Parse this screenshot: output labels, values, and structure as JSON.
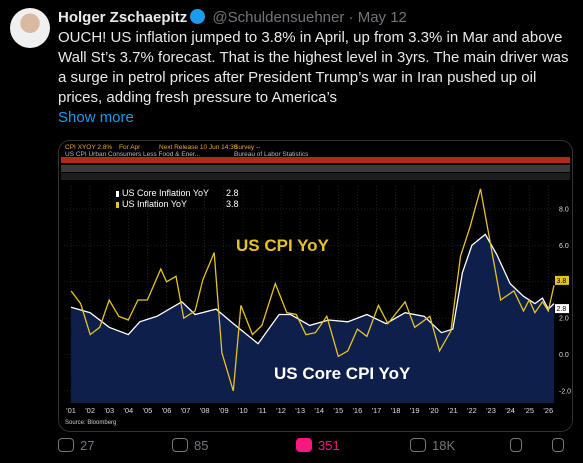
{
  "tweet": {
    "author": "Holger Zschaepitz",
    "handle": "@Schuldensuehner",
    "date": "May 12",
    "text": "OUCH! US inflation jumped to 3.8% in April, up from 3.3% in Mar and above Wall St’s 3.7% forecast. That is the highest level in 3yrs. The main driver was a surge in petrol prices after President Trump’s war in Iran pushed up oil prices, adding fresh pressure to America’s",
    "show_more": "Show more",
    "stats": {
      "replies": 27,
      "reposts": 85,
      "likes": 351,
      "views": "18K"
    }
  },
  "chart_data": {
    "type": "line",
    "header": [
      "CPI XYOY 2.8%",
      "For Apr",
      "Next Release 10 Jun 14:30",
      "Survey --",
      "US CPI Urban Consumers Less Food & Ener...",
      "Bureau of Labor Statistics"
    ],
    "annotations": [
      "US CPI YoY",
      "US Core CPI YoY"
    ],
    "source": "Source: Bloomberg",
    "xlim": [
      2000.63,
      2026.3
    ],
    "ylim": [
      -2.66,
      9.26
    ],
    "xticks": [
      {
        "value": 2001,
        "label": "'01"
      },
      {
        "value": 2002,
        "label": "'02"
      },
      {
        "value": 2003,
        "label": "'03"
      },
      {
        "value": 2004,
        "label": "'04"
      },
      {
        "value": 2005,
        "label": "'05"
      },
      {
        "value": 2006,
        "label": "'06"
      },
      {
        "value": 2007,
        "label": "'07"
      },
      {
        "value": 2008,
        "label": "'08"
      },
      {
        "value": 2009,
        "label": "'09"
      },
      {
        "value": 2010,
        "label": "'10"
      },
      {
        "value": 2011,
        "label": "'11"
      },
      {
        "value": 2012,
        "label": "'12"
      },
      {
        "value": 2013,
        "label": "'13"
      },
      {
        "value": 2014,
        "label": "'14"
      },
      {
        "value": 2015,
        "label": "'15"
      },
      {
        "value": 2016,
        "label": "'16"
      },
      {
        "value": 2017,
        "label": "'17"
      },
      {
        "value": 2018,
        "label": "'18"
      },
      {
        "value": 2019,
        "label": "'19"
      },
      {
        "value": 2020,
        "label": "'20"
      },
      {
        "value": 2021,
        "label": "'21"
      },
      {
        "value": 2022,
        "label": "'22"
      },
      {
        "value": 2023,
        "label": "'23"
      },
      {
        "value": 2024,
        "label": "'24"
      },
      {
        "value": 2025,
        "label": "'25"
      },
      {
        "value": 2026,
        "label": "'26"
      }
    ],
    "yticks": [
      {
        "value": -2,
        "label": "-2.0"
      },
      {
        "value": 0,
        "label": "0.0"
      },
      {
        "value": 2,
        "label": "2.0"
      },
      {
        "value": 4,
        "label": "4.0"
      },
      {
        "value": 6,
        "label": "6.0"
      },
      {
        "value": 8,
        "label": "8.0"
      }
    ],
    "series": [
      {
        "name": "US Core Inflation YoY",
        "latest": 2.8,
        "color": "#ffffff",
        "fill": "#0d1f4a",
        "x": [
          2001,
          2002,
          2003,
          2004,
          2004.6,
          2005.5,
          2006.8,
          2007.5,
          2008.6,
          2009.5,
          2010.8,
          2011.9,
          2012.5,
          2013.5,
          2014.5,
          2015.5,
          2016.5,
          2017.5,
          2018.5,
          2019.5,
          2020.4,
          2021.0,
          2021.5,
          2022.0,
          2022.7,
          2023.3,
          2024.0,
          2024.7,
          2025.3,
          2025.7,
          2026.0,
          2026.3
        ],
        "values": [
          2.6,
          2.3,
          1.5,
          1.1,
          1.8,
          2.1,
          2.9,
          2.2,
          2.5,
          1.7,
          0.6,
          2.2,
          2.2,
          1.6,
          1.9,
          1.8,
          2.2,
          1.7,
          2.3,
          2.1,
          1.2,
          1.4,
          4.5,
          6.0,
          6.6,
          5.5,
          3.9,
          3.2,
          2.8,
          3.1,
          2.5,
          2.8
        ]
      },
      {
        "name": "US Inflation YoY",
        "latest": 3.8,
        "color": "#e6c229",
        "x": [
          2001,
          2001.5,
          2002,
          2002.5,
          2003,
          2003.5,
          2004,
          2004.5,
          2005,
          2005.7,
          2006,
          2006.5,
          2006.9,
          2007.5,
          2007.9,
          2008.5,
          2008.9,
          2009.5,
          2009.9,
          2010.5,
          2011,
          2011.7,
          2012.3,
          2012.8,
          2013.3,
          2013.8,
          2014.4,
          2015,
          2015.5,
          2016,
          2016.5,
          2017.1,
          2017.6,
          2018.5,
          2019,
          2019.8,
          2020.3,
          2020.9,
          2021.4,
          2021.9,
          2022.45,
          2022.9,
          2023.5,
          2024.2,
          2024.7,
          2025,
          2025.3,
          2025.7,
          2026,
          2026.3
        ],
        "values": [
          3.5,
          2.8,
          1.1,
          1.5,
          3.0,
          2.1,
          1.9,
          3.0,
          3.0,
          4.7,
          4.0,
          4.3,
          2.0,
          2.4,
          4.1,
          5.6,
          0.1,
          -2.0,
          2.7,
          1.1,
          1.6,
          3.9,
          2.3,
          2.2,
          1.1,
          1.2,
          2.1,
          -0.1,
          0.2,
          1.4,
          1.0,
          2.7,
          1.7,
          2.9,
          1.5,
          2.1,
          0.2,
          1.3,
          5.4,
          7.0,
          9.1,
          6.5,
          3.0,
          3.5,
          2.4,
          3.0,
          2.3,
          2.9,
          2.4,
          3.8
        ]
      }
    ]
  }
}
